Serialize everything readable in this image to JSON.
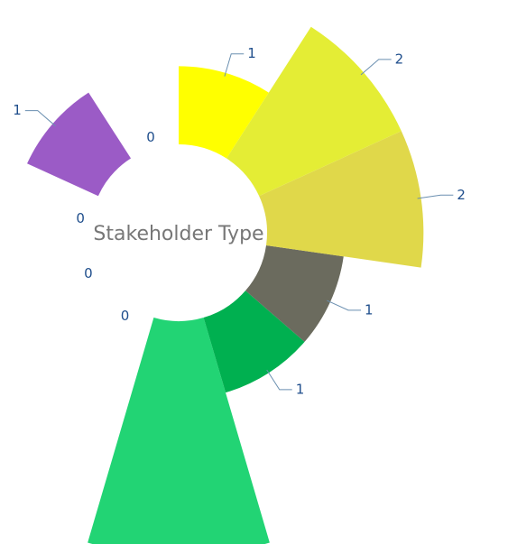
{
  "chart_data": {
    "type": "rose",
    "title": "Stakeholder Type",
    "values": [
      1,
      2,
      2,
      1,
      1,
      3,
      0,
      0,
      0,
      1,
      0
    ],
    "colors": [
      "#ffff00",
      "#e4ed35",
      "#e0d84a",
      "#6b6b5e",
      "#00b050",
      "#22d474",
      "#5b9bd5",
      "#5b9bd5",
      "#5b9bd5",
      "#9b5bc6",
      "#5b9bd5"
    ]
  }
}
